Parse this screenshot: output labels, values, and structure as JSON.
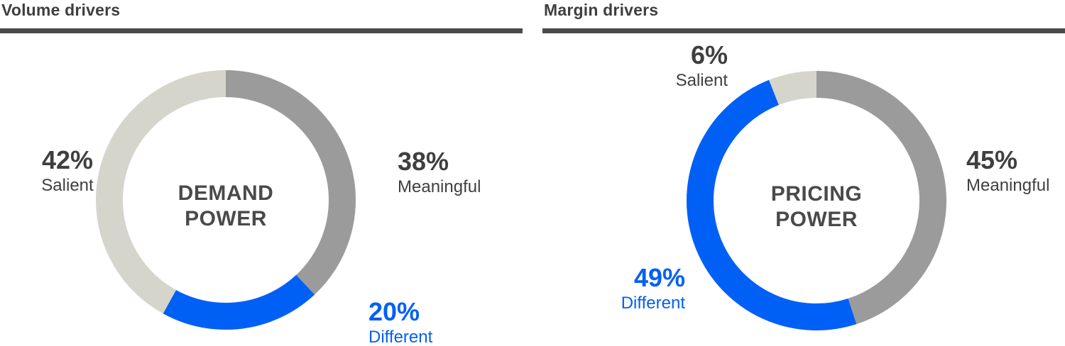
{
  "colors": {
    "dark_text": "#3f3f3f",
    "center_text": "#4a4a4a",
    "rule": "#4a4a4a",
    "accent_blue": "#0060f5",
    "segment_gray": "#9b9b9b",
    "segment_light": "#d6d5cc",
    "background": "#ffffff"
  },
  "chart_data": [
    {
      "type": "pie",
      "variant": "donut",
      "panel_title": "Volume drivers",
      "center_label_lines": [
        "DEMAND",
        "POWER"
      ],
      "unit": "%",
      "start_angle_deg": 0,
      "direction": "clockwise",
      "legend_position": "around",
      "segments": [
        {
          "label": "Meaningful",
          "value": 38,
          "color": "#9b9b9b",
          "label_color": "#3f3f3f"
        },
        {
          "label": "Different",
          "value": 20,
          "color": "#0060f5",
          "label_color": "#0060f5"
        },
        {
          "label": "Salient",
          "value": 42,
          "color": "#d6d5cc",
          "label_color": "#3f3f3f"
        }
      ]
    },
    {
      "type": "pie",
      "variant": "donut",
      "panel_title": "Margin drivers",
      "center_label_lines": [
        "PRICING",
        "POWER"
      ],
      "unit": "%",
      "start_angle_deg": 0,
      "direction": "clockwise",
      "legend_position": "around",
      "segments": [
        {
          "label": "Meaningful",
          "value": 45,
          "color": "#9b9b9b",
          "label_color": "#3f3f3f"
        },
        {
          "label": "Different",
          "value": 49,
          "color": "#0060f5",
          "label_color": "#0060f5"
        },
        {
          "label": "Salient",
          "value": 6,
          "color": "#d6d5cc",
          "label_color": "#3f3f3f"
        }
      ]
    }
  ]
}
